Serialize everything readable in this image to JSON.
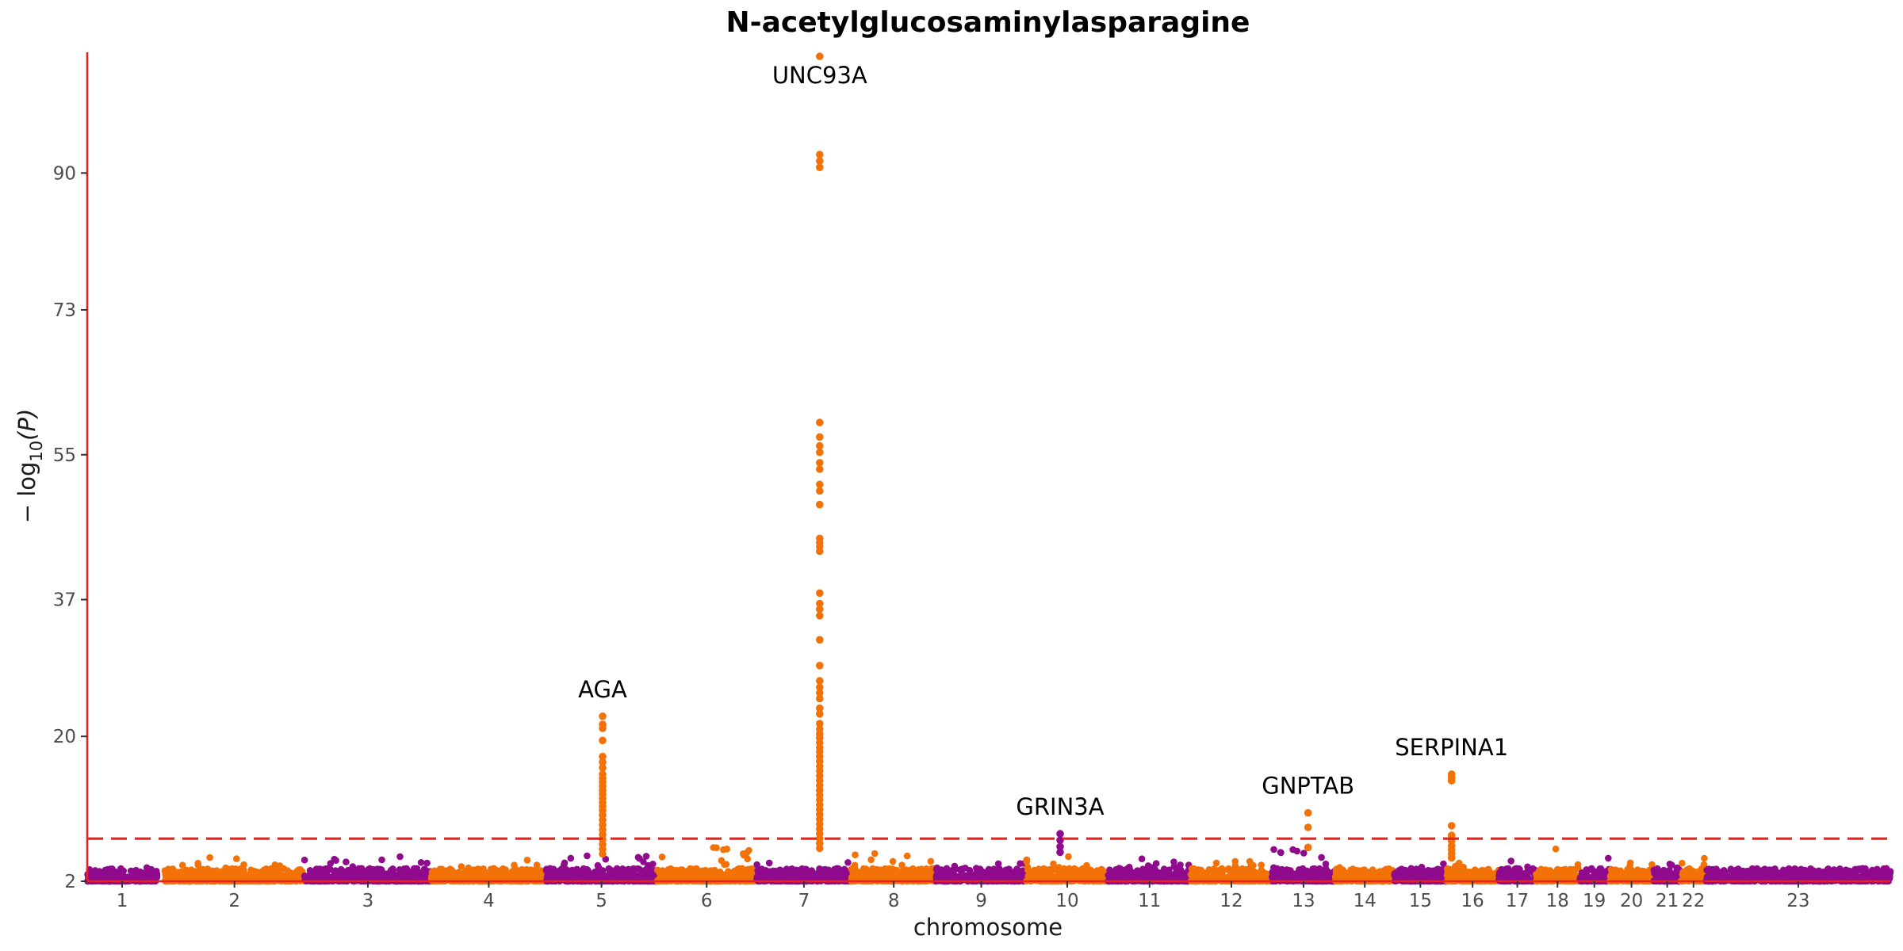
{
  "chart_data": {
    "type": "scatter",
    "subtype": "manhattan",
    "title": "N-acetylglucosaminylasparagine",
    "xlabel": "chromosome",
    "ylabel": "−log10(P)",
    "ylabel_main": "− log",
    "ylabel_sub": "10",
    "ylabel_tail": "(P)",
    "ylim": [
      2,
      105
    ],
    "yticks": [
      2,
      20,
      37,
      55,
      73,
      90
    ],
    "significance_threshold": 7.3,
    "threshold_color": "#e8221d",
    "axis_color": "#e8221d",
    "colors": {
      "odd": "#8f0a8c",
      "even": "#f27208"
    },
    "chromosomes": [
      {
        "label": "1",
        "start": 0,
        "end": 9.3,
        "peak": 3.9
      },
      {
        "label": "2",
        "start": 10.3,
        "end": 28.9,
        "peak": 5.2
      },
      {
        "label": "3",
        "start": 28.9,
        "end": 45.8,
        "peak": 5.1
      },
      {
        "label": "4",
        "start": 45.8,
        "end": 61.1,
        "peak": 4.9
      },
      {
        "label": "5",
        "start": 61.1,
        "end": 75.8,
        "peak": 5.3
      },
      {
        "label": "6",
        "start": 75.8,
        "end": 89.1,
        "peak": 6.3
      },
      {
        "label": "7",
        "start": 89.1,
        "end": 101.7,
        "peak": 4.4
      },
      {
        "label": "8",
        "start": 101.7,
        "end": 113.0,
        "peak": 5.5
      },
      {
        "label": "9",
        "start": 113.0,
        "end": 125.0,
        "peak": 4.4
      },
      {
        "label": "10",
        "start": 125.0,
        "end": 135.9,
        "peak": 5.2
      },
      {
        "label": "11",
        "start": 135.9,
        "end": 146.9,
        "peak": 5.0
      },
      {
        "label": "12",
        "start": 146.9,
        "end": 157.7,
        "peak": 5.2
      },
      {
        "label": "13",
        "start": 157.7,
        "end": 166.1,
        "peak": 6.4
      },
      {
        "label": "14",
        "start": 166.1,
        "end": 174.0,
        "peak": 4.7
      },
      {
        "label": "15",
        "start": 174.0,
        "end": 180.9,
        "peak": 4.4
      },
      {
        "label": "16",
        "start": 180.9,
        "end": 187.9,
        "peak": 4.3
      },
      {
        "label": "17",
        "start": 187.9,
        "end": 192.8,
        "peak": 5.0
      },
      {
        "label": "18",
        "start": 192.8,
        "end": 198.6,
        "peak": 6.3
      },
      {
        "label": "19",
        "start": 198.6,
        "end": 202.6,
        "peak": 5.3
      },
      {
        "label": "20",
        "start": 202.6,
        "end": 208.5,
        "peak": 5.3
      },
      {
        "label": "21",
        "start": 208.5,
        "end": 212.1,
        "peak": 4.2
      },
      {
        "label": "22",
        "start": 212.1,
        "end": 215.5,
        "peak": 5.2
      },
      {
        "label": "23",
        "start": 215.5,
        "end": 240.0,
        "peak": 3.6
      }
    ],
    "xlim": [
      0,
      240
    ],
    "hits": [
      {
        "gene": "UNC93A",
        "x": 97.5,
        "chrom_index": 5,
        "top": 104.5,
        "values": [
          104.5,
          92.3,
          91.5,
          90.7,
          59.0,
          57.2,
          56.1,
          55.3,
          54.0,
          53.2,
          51.3,
          50.5,
          48.8,
          44.6,
          44.1,
          43.6,
          43.0,
          37.8,
          36.5,
          35.8,
          35.0,
          32.0,
          28.8,
          26.9,
          26.1,
          25.4,
          24.7,
          23.5,
          22.8,
          21.6,
          20.9,
          20.3,
          19.8,
          19.2,
          18.6,
          18.1,
          17.5,
          16.9,
          16.3,
          15.7,
          15.1,
          14.5,
          13.9,
          13.3,
          12.7,
          12.1,
          11.5,
          10.9,
          10.3,
          9.7,
          9.1,
          8.5,
          7.9,
          7.3,
          6.7,
          6.1
        ]
      },
      {
        "gene": "AGA",
        "x": 68.6,
        "chrom_index": 3,
        "top": 22.5,
        "values": [
          22.5,
          21.5,
          21.0,
          19.5,
          17.5,
          16.8,
          16.1,
          15.3,
          14.8,
          14.3,
          13.8,
          13.3,
          12.8,
          12.3,
          11.8,
          11.3,
          10.8,
          10.2,
          9.6,
          9.0,
          8.4,
          7.8,
          7.2,
          6.6,
          6.0,
          5.4
        ]
      },
      {
        "gene": "GRIN3A",
        "x": 129.5,
        "chrom_index": 8,
        "top": 7.9,
        "values": [
          7.9,
          7.1,
          6.3,
          5.6
        ]
      },
      {
        "gene": "GNPTAB",
        "x": 162.5,
        "chrom_index": 11,
        "top": 10.5,
        "values": [
          10.5,
          8.7,
          6.2
        ]
      },
      {
        "gene": "SERPINA1",
        "x": 181.6,
        "chrom_index": 13,
        "top": 15.3,
        "values": [
          15.3,
          14.9,
          14.5,
          8.9,
          7.7,
          7.0,
          6.4,
          5.9,
          5.4,
          4.9
        ]
      }
    ]
  }
}
